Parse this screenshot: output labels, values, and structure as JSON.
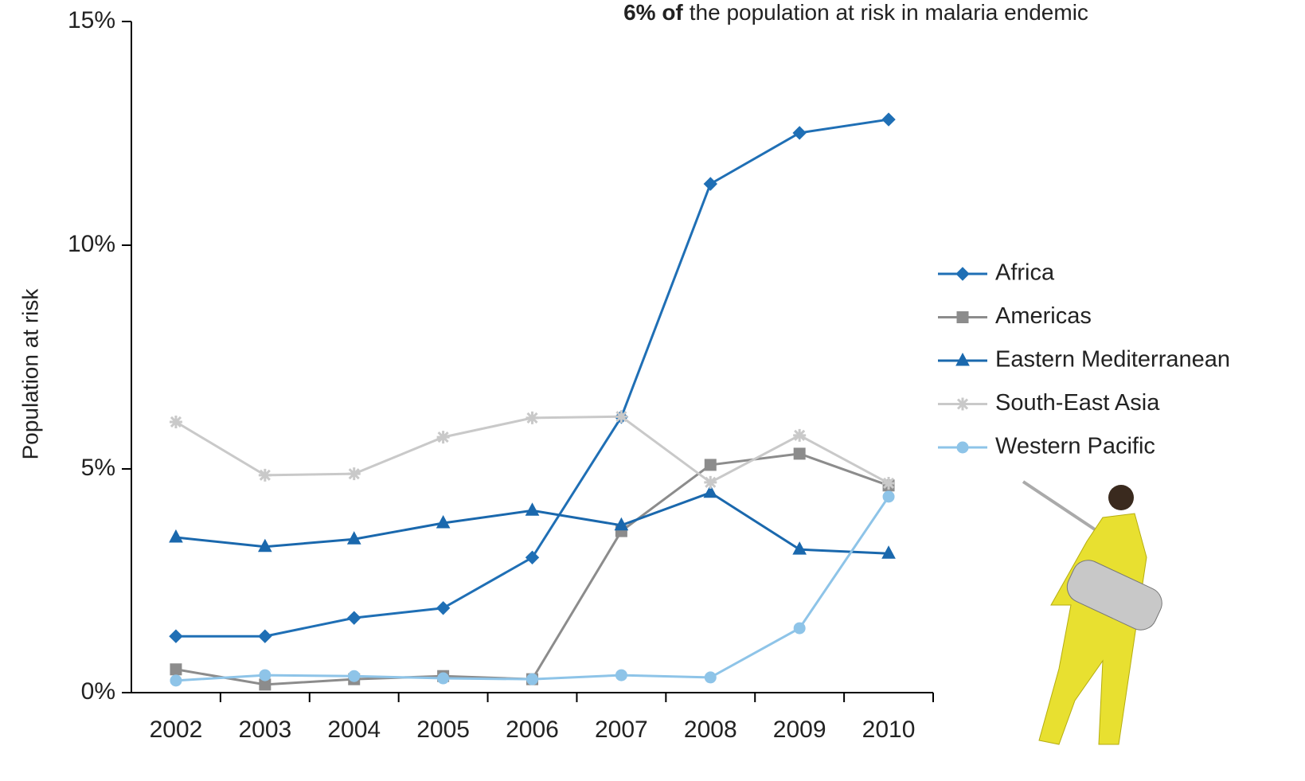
{
  "chart_data": {
    "type": "line",
    "title_bold": "6% of",
    "title": "the population at risk in malaria endemic",
    "ylabel": "Population at risk",
    "categories": [
      "2002",
      "2003",
      "2004",
      "2005",
      "2006",
      "2007",
      "2008",
      "2009",
      "2010"
    ],
    "ylim": [
      0,
      15
    ],
    "yticks": [
      {
        "value": 0,
        "label": "0%"
      },
      {
        "value": 5,
        "label": "5%"
      },
      {
        "value": 10,
        "label": "10%"
      },
      {
        "value": 15,
        "label": "15%"
      }
    ],
    "series": [
      {
        "name": "Africa",
        "color": "#1f6fb5",
        "marker": "diamond",
        "values": [
          1.26,
          1.26,
          1.67,
          1.89,
          3.02,
          6.16,
          11.37,
          12.51,
          12.81
        ]
      },
      {
        "name": "Americas",
        "color": "#8c8c8c",
        "marker": "square",
        "values": [
          0.52,
          0.18,
          0.3,
          0.37,
          0.3,
          3.61,
          5.09,
          5.34,
          4.63
        ]
      },
      {
        "name": "Eastern Mediterranean",
        "color": "#1a68ad",
        "marker": "triangle",
        "values": [
          3.47,
          3.26,
          3.43,
          3.79,
          4.07,
          3.74,
          4.47,
          3.2,
          3.11
        ]
      },
      {
        "name": "South-East Asia",
        "color": "#c9c9c9",
        "marker": "asterisk",
        "values": [
          6.05,
          4.86,
          4.89,
          5.71,
          6.14,
          6.17,
          4.7,
          5.75,
          4.68
        ]
      },
      {
        "name": "Western Pacific",
        "color": "#8ec4e8",
        "marker": "circle",
        "values": [
          0.27,
          0.39,
          0.37,
          0.32,
          0.3,
          0.39,
          0.34,
          1.44,
          4.38
        ]
      }
    ]
  }
}
